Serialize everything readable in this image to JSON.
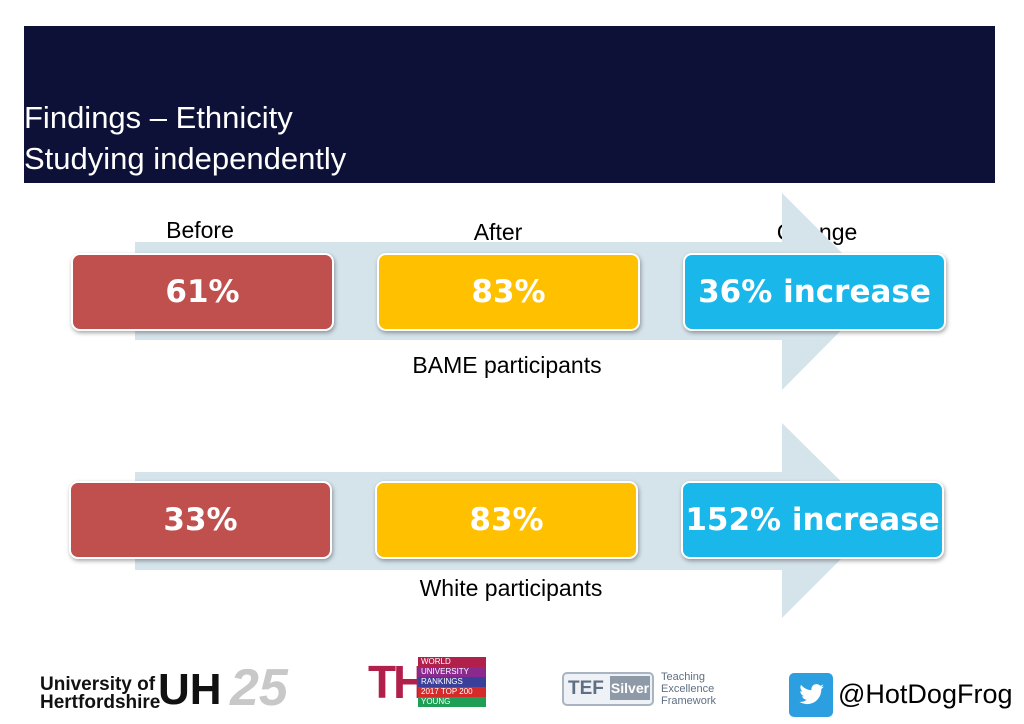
{
  "slide": {
    "title_line1": "Findings – Ethnicity",
    "title_line2": "Studying independently"
  },
  "columns": {
    "before": "Before",
    "after": "After",
    "change": "Change"
  },
  "rows": [
    {
      "before": "61%",
      "after": "83%",
      "change": "36% increase",
      "label": "BAME participants"
    },
    {
      "before": "33%",
      "after": "83%",
      "change": "152% increase",
      "label": "White participants"
    }
  ],
  "colors": {
    "header_bg": "#0d1137",
    "before": "#c0504d",
    "after": "#ffc000",
    "change": "#1ab7ea",
    "arrow": "#d5e3eb"
  },
  "footer": {
    "uh_line1": "University of",
    "uh_line2": "Hertfordshire",
    "uh_mark": "UH",
    "uh_anniversary": "25",
    "the_letters": "THE",
    "the_lines": [
      "WORLD",
      "UNIVERSITY",
      "RANKINGS",
      "2017 TOP 200",
      "YOUNG"
    ],
    "tef_mark": "TEF",
    "tef_level": "Silver",
    "tef_words": [
      "Teaching",
      "Excellence",
      "Framework"
    ],
    "twitter_icon": "twitter-bird-icon",
    "twitter_handle": "@HotDogFrog"
  }
}
